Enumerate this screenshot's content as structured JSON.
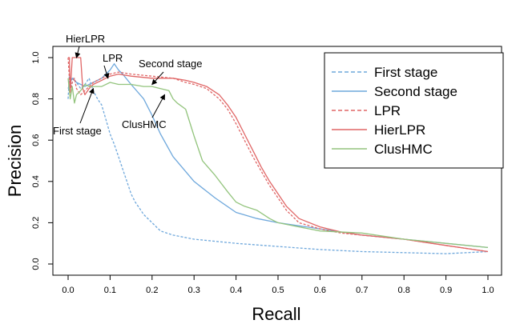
{
  "chart_data": {
    "type": "line",
    "title": "",
    "xlabel": "Recall",
    "ylabel": "Precision",
    "xlim": [
      0,
      1
    ],
    "ylim": [
      0,
      1
    ],
    "xticks": [
      "0.0",
      "0.1",
      "0.2",
      "0.3",
      "0.4",
      "0.5",
      "0.6",
      "0.7",
      "0.8",
      "0.9",
      "1.0"
    ],
    "yticks": [
      "0.0",
      "0.2",
      "0.4",
      "0.6",
      "0.8",
      "1.0"
    ],
    "grid": false,
    "legend_position": "top-right",
    "series": [
      {
        "name": "First stage",
        "color": "#6fa8dc",
        "dash": "dashed",
        "x": [
          0.0,
          0.003,
          0.008,
          0.012,
          0.02,
          0.03,
          0.04,
          0.05,
          0.06,
          0.07,
          0.08,
          0.09,
          0.1,
          0.11,
          0.12,
          0.13,
          0.14,
          0.15,
          0.16,
          0.17,
          0.18,
          0.2,
          0.22,
          0.25,
          0.3,
          0.4,
          0.5,
          0.6,
          0.7,
          0.8,
          0.9,
          0.95,
          1.0
        ],
        "y": [
          0.8,
          0.92,
          0.86,
          0.9,
          0.88,
          0.85,
          0.87,
          0.9,
          0.84,
          0.8,
          0.77,
          0.7,
          0.63,
          0.58,
          0.52,
          0.46,
          0.4,
          0.34,
          0.3,
          0.27,
          0.24,
          0.2,
          0.16,
          0.14,
          0.12,
          0.1,
          0.085,
          0.07,
          0.06,
          0.055,
          0.05,
          0.055,
          0.06
        ]
      },
      {
        "name": "Second stage",
        "color": "#6fa8dc",
        "dash": "solid",
        "x": [
          0.0,
          0.005,
          0.01,
          0.02,
          0.04,
          0.06,
          0.08,
          0.1,
          0.11,
          0.12,
          0.13,
          0.15,
          0.18,
          0.2,
          0.22,
          0.25,
          0.3,
          0.35,
          0.4,
          0.45,
          0.5,
          0.6,
          0.7,
          0.8,
          0.9,
          1.0
        ],
        "y": [
          0.85,
          0.88,
          0.9,
          0.88,
          0.86,
          0.88,
          0.9,
          0.94,
          0.97,
          0.94,
          0.92,
          0.87,
          0.8,
          0.72,
          0.63,
          0.52,
          0.4,
          0.32,
          0.25,
          0.22,
          0.2,
          0.17,
          0.14,
          0.12,
          0.1,
          0.08
        ]
      },
      {
        "name": "LPR",
        "color": "#e06666",
        "dash": "dashed",
        "x": [
          0.0,
          0.005,
          0.01,
          0.015,
          0.02,
          0.03,
          0.04,
          0.05,
          0.06,
          0.08,
          0.1,
          0.12,
          0.15,
          0.2,
          0.25,
          0.28,
          0.3,
          0.33,
          0.36,
          0.38,
          0.4,
          0.42,
          0.44,
          0.46,
          0.48,
          0.5,
          0.52,
          0.55,
          0.6,
          0.65,
          0.7,
          0.8,
          0.9,
          1.0
        ],
        "y": [
          1.0,
          0.84,
          0.88,
          0.9,
          0.85,
          0.82,
          0.84,
          0.86,
          0.88,
          0.9,
          0.92,
          0.93,
          0.92,
          0.91,
          0.9,
          0.88,
          0.87,
          0.85,
          0.8,
          0.75,
          0.68,
          0.6,
          0.52,
          0.45,
          0.38,
          0.32,
          0.26,
          0.2,
          0.17,
          0.15,
          0.14,
          0.12,
          0.09,
          0.06
        ]
      },
      {
        "name": "HierLPR",
        "color": "#e06666",
        "dash": "solid",
        "x": [
          0.0,
          0.003,
          0.005,
          0.01,
          0.015,
          0.02,
          0.025,
          0.03,
          0.035,
          0.04,
          0.05,
          0.06,
          0.08,
          0.1,
          0.12,
          0.15,
          0.2,
          0.25,
          0.28,
          0.3,
          0.33,
          0.36,
          0.38,
          0.4,
          0.42,
          0.44,
          0.46,
          0.48,
          0.5,
          0.52,
          0.55,
          0.6,
          0.65,
          0.7,
          0.8,
          0.9,
          1.0
        ],
        "y": [
          1.0,
          1.0,
          0.83,
          1.0,
          1.0,
          1.0,
          1.0,
          1.0,
          0.85,
          0.82,
          0.85,
          0.87,
          0.89,
          0.91,
          0.92,
          0.91,
          0.9,
          0.9,
          0.89,
          0.88,
          0.86,
          0.82,
          0.77,
          0.71,
          0.63,
          0.55,
          0.47,
          0.4,
          0.34,
          0.28,
          0.22,
          0.18,
          0.155,
          0.14,
          0.12,
          0.09,
          0.06
        ]
      },
      {
        "name": "ClusHMC",
        "color": "#93c47d",
        "dash": "solid",
        "x": [
          0.0,
          0.005,
          0.01,
          0.015,
          0.02,
          0.03,
          0.04,
          0.05,
          0.06,
          0.08,
          0.1,
          0.12,
          0.15,
          0.18,
          0.2,
          0.22,
          0.24,
          0.25,
          0.26,
          0.28,
          0.3,
          0.32,
          0.35,
          0.38,
          0.4,
          0.42,
          0.45,
          0.48,
          0.5,
          0.55,
          0.6,
          0.7,
          0.8,
          0.9,
          1.0
        ],
        "y": [
          0.9,
          0.8,
          0.86,
          0.78,
          0.82,
          0.84,
          0.87,
          0.86,
          0.86,
          0.86,
          0.88,
          0.87,
          0.87,
          0.86,
          0.86,
          0.85,
          0.84,
          0.8,
          0.78,
          0.75,
          0.62,
          0.5,
          0.43,
          0.35,
          0.3,
          0.28,
          0.26,
          0.22,
          0.2,
          0.18,
          0.16,
          0.15,
          0.12,
          0.1,
          0.08
        ]
      }
    ],
    "annotations": [
      {
        "text": "HierLPR",
        "x": 0.02,
        "y": 1.0
      },
      {
        "text": "LPR",
        "x": 0.095,
        "y": 0.9
      },
      {
        "text": "Second stage",
        "x": 0.2,
        "y": 0.87
      },
      {
        "text": "First stage",
        "x": 0.06,
        "y": 0.85
      },
      {
        "text": "ClusHMC",
        "x": 0.23,
        "y": 0.82
      }
    ]
  }
}
